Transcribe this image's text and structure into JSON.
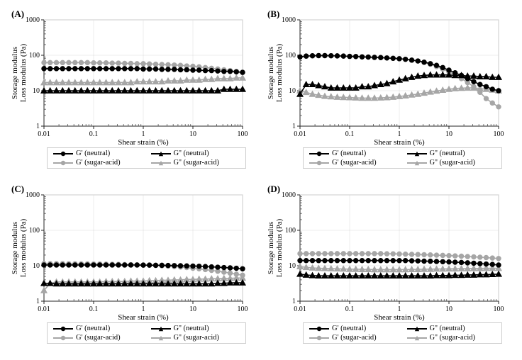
{
  "layout": {
    "panels": [
      "A",
      "B",
      "C",
      "D"
    ],
    "background_color": "#ffffff",
    "border_color": "#bdbdbd",
    "axis_color": "#262626",
    "grid_color": "#d9d9d9"
  },
  "axes": {
    "xlabel": "Shear strain (%)",
    "ylabel": "Storage modulus\nLoss modulus (Pa)",
    "label_fontsize": 11,
    "tick_fontsize": 10,
    "xscale": "log",
    "yscale": "log",
    "xlim": [
      0.01,
      100
    ],
    "ylim": [
      1,
      1000
    ],
    "xticks": [
      0.01,
      0.1,
      1,
      10,
      100
    ],
    "yticks": [
      1,
      10,
      100,
      1000
    ]
  },
  "colors": {
    "neutral": "#000000",
    "sugar_acid": "#a6a6a6"
  },
  "markers": {
    "Gprime": "circle",
    "Gdprime": "triangle",
    "line_width": 1.6,
    "marker_size": 4.5
  },
  "x_values": [
    0.01,
    0.0133,
    0.0178,
    0.0237,
    0.0316,
    0.0422,
    0.0562,
    0.075,
    0.1,
    0.133,
    0.178,
    0.237,
    0.316,
    0.422,
    0.562,
    0.75,
    1,
    1.33,
    1.78,
    2.37,
    3.16,
    4.22,
    5.62,
    7.5,
    10,
    13.3,
    17.8,
    23.7,
    31.6,
    42.2,
    56.2,
    75,
    100
  ],
  "legend": {
    "items": [
      {
        "key": "gp_n",
        "label": "G' (neutral)",
        "color": "#000000",
        "marker": "circle"
      },
      {
        "key": "gdp_n",
        "label": "G'' (neutral)",
        "color": "#000000",
        "marker": "triangle"
      },
      {
        "key": "gp_s",
        "label": "G' (sugar-acid)",
        "color": "#a6a6a6",
        "marker": "circle"
      },
      {
        "key": "gdp_s",
        "label": "G'' (sugar-acid)",
        "color": "#a6a6a6",
        "marker": "triangle"
      }
    ]
  },
  "series": {
    "A": {
      "gp_n": [
        42,
        42,
        42,
        42,
        42,
        42,
        42,
        42,
        42,
        42,
        42,
        42,
        42,
        42,
        42,
        42,
        41,
        41,
        41,
        40,
        40,
        40,
        39,
        39,
        38,
        38,
        37,
        37,
        36,
        35,
        35,
        34,
        33
      ],
      "gdp_n": [
        10,
        10,
        10,
        10,
        10,
        10,
        10,
        10,
        10,
        10,
        10,
        10,
        10,
        10,
        10,
        10,
        10,
        10,
        10,
        10,
        10,
        10,
        10,
        10,
        10,
        10,
        10,
        10,
        10,
        11,
        11,
        11,
        11
      ],
      "gp_s": [
        62,
        62,
        62,
        62,
        62,
        62,
        62,
        62,
        61,
        61,
        61,
        60,
        60,
        59,
        59,
        58,
        58,
        57,
        56,
        55,
        54,
        53,
        52,
        50,
        49,
        47,
        45,
        43,
        41,
        39,
        37,
        35,
        33
      ],
      "gdp_s": [
        17,
        17,
        17,
        17,
        17,
        17,
        17,
        17,
        17,
        17,
        17,
        17,
        17,
        17,
        17,
        18,
        18,
        18,
        18,
        18,
        19,
        19,
        19,
        20,
        20,
        20,
        21,
        21,
        22,
        22,
        22,
        23,
        23
      ]
    },
    "B": {
      "gp_n": [
        90,
        95,
        97,
        98,
        98,
        97,
        96,
        95,
        93,
        92,
        90,
        89,
        87,
        86,
        84,
        82,
        80,
        77,
        73,
        69,
        64,
        58,
        52,
        45,
        38,
        32,
        27,
        22,
        18,
        15,
        13,
        11,
        10
      ],
      "gdp_n": [
        8,
        15,
        15,
        14,
        13,
        12,
        12,
        12,
        12,
        12,
        13,
        13,
        14,
        15,
        16,
        18,
        20,
        22,
        24,
        26,
        27,
        28,
        28,
        28,
        28,
        27,
        27,
        26,
        26,
        25,
        25,
        24,
        24
      ],
      "gp_s": [
        90,
        94,
        96,
        97,
        97,
        97,
        96,
        95,
        94,
        93,
        91,
        90,
        88,
        86,
        84,
        82,
        80,
        77,
        73,
        69,
        63,
        56,
        48,
        41,
        34,
        28,
        22,
        17,
        13,
        9,
        6,
        4.5,
        3.5
      ],
      "gdp_s": [
        10,
        9,
        8,
        7.5,
        7,
        6.8,
        6.6,
        6.5,
        6.4,
        6.3,
        6.2,
        6.2,
        6.2,
        6.3,
        6.4,
        6.6,
        6.9,
        7.2,
        7.6,
        8,
        8.6,
        9.2,
        9.8,
        10.4,
        11,
        11.5,
        11.8,
        12,
        12,
        11.5,
        11,
        10.5,
        10
      ]
    },
    "C": {
      "gp_n": [
        10.5,
        10.5,
        10.5,
        10.5,
        10.5,
        10.5,
        10.5,
        10.5,
        10.5,
        10.5,
        10.5,
        10.5,
        10.5,
        10.5,
        10.5,
        10.5,
        10.4,
        10.4,
        10.3,
        10.3,
        10.2,
        10.1,
        10.0,
        9.9,
        9.8,
        9.7,
        9.5,
        9.3,
        9.1,
        8.9,
        8.7,
        8.5,
        8.2
      ],
      "gdp_n": [
        3.2,
        3.2,
        3.1,
        3.1,
        3.1,
        3.1,
        3.1,
        3.1,
        3.1,
        3.1,
        3.1,
        3.1,
        3.1,
        3.1,
        3.1,
        3.1,
        3.1,
        3.1,
        3.1,
        3.1,
        3.1,
        3.1,
        3.1,
        3.1,
        3.1,
        3.1,
        3.1,
        3.1,
        3.2,
        3.2,
        3.3,
        3.3,
        3.3
      ],
      "gp_s": [
        11.5,
        11.5,
        11.5,
        11.5,
        11.4,
        11.4,
        11.3,
        11.3,
        11.2,
        11.2,
        11.1,
        11.0,
        10.9,
        10.8,
        10.7,
        10.6,
        10.5,
        10.4,
        10.2,
        10.0,
        9.8,
        9.5,
        9.2,
        8.9,
        8.5,
        8.2,
        7.8,
        7.4,
        7.0,
        6.6,
        6.2,
        5.8,
        5.4
      ],
      "gdp_s": [
        2.0,
        3.2,
        3.5,
        3.5,
        3.5,
        3.5,
        3.5,
        3.5,
        3.5,
        3.5,
        3.6,
        3.6,
        3.6,
        3.6,
        3.7,
        3.7,
        3.7,
        3.8,
        3.8,
        3.9,
        3.9,
        4.0,
        4.0,
        4.1,
        4.1,
        4.2,
        4.2,
        4.3,
        4.3,
        4.4,
        4.4,
        4.5,
        4.5
      ]
    },
    "D": {
      "gp_n": [
        14,
        14,
        14,
        14,
        14,
        14,
        14,
        14,
        14,
        14,
        14,
        14,
        14,
        14,
        14,
        14,
        14,
        14,
        13.8,
        13.7,
        13.5,
        13.4,
        13.2,
        13.0,
        12.8,
        12.6,
        12.4,
        12.1,
        11.8,
        11.5,
        11.2,
        10.9,
        10.5
      ],
      "gdp_n": [
        5.8,
        5.5,
        5.3,
        5.2,
        5.2,
        5.2,
        5.2,
        5.2,
        5.2,
        5.2,
        5.2,
        5.2,
        5.2,
        5.2,
        5.2,
        5.2,
        5.2,
        5.2,
        5.2,
        5.2,
        5.2,
        5.2,
        5.3,
        5.3,
        5.3,
        5.4,
        5.4,
        5.5,
        5.5,
        5.6,
        5.6,
        5.7,
        5.8
      ],
      "gp_s": [
        22,
        22,
        22,
        22,
        22,
        22,
        22,
        22,
        22,
        22,
        22,
        22,
        22,
        22,
        21.8,
        21.7,
        21.5,
        21.3,
        21.0,
        20.8,
        20.5,
        20.2,
        19.9,
        19.6,
        19.3,
        19.0,
        18.6,
        18.2,
        17.8,
        17.4,
        17.0,
        16.5,
        16.0
      ],
      "gdp_s": [
        9.5,
        9.0,
        8.7,
        8.5,
        8.4,
        8.3,
        8.2,
        8.1,
        8.0,
        8.0,
        7.9,
        7.9,
        7.8,
        7.8,
        7.8,
        7.8,
        7.8,
        7.8,
        7.9,
        7.9,
        8.0,
        8.0,
        8.1,
        8.1,
        8.2,
        8.2,
        8.3,
        8.3,
        8.4,
        8.4,
        8.5,
        8.5,
        8.5
      ]
    }
  }
}
